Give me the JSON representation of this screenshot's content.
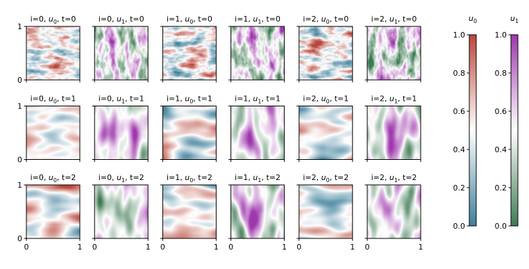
{
  "chart_data": {
    "type": "heatmap-grid",
    "xlim": [
      0,
      1
    ],
    "ylim": [
      0,
      1
    ],
    "xticks": [
      0,
      1
    ],
    "yticks": [
      0,
      1
    ],
    "panels": [
      {
        "title": [
          "i=0, ",
          "u",
          "0",
          ", t=0"
        ]
      },
      {
        "title": [
          "i=0, ",
          "u",
          "1",
          ", t=0"
        ]
      },
      {
        "title": [
          "i=1, ",
          "u",
          "0",
          ", t=0"
        ]
      },
      {
        "title": [
          "i=1, ",
          "u",
          "1",
          ", t=0"
        ]
      },
      {
        "title": [
          "i=2, ",
          "u",
          "0",
          ", t=0"
        ]
      },
      {
        "title": [
          "i=2, ",
          "u",
          "1",
          ", t=0"
        ]
      },
      {
        "title": [
          "i=0, ",
          "u",
          "0",
          ", t=1"
        ]
      },
      {
        "title": [
          "i=0, ",
          "u",
          "1",
          ", t=1"
        ]
      },
      {
        "title": [
          "i=1, ",
          "u",
          "0",
          ", t=1"
        ]
      },
      {
        "title": [
          "i=1, ",
          "u",
          "1",
          ", t=1"
        ]
      },
      {
        "title": [
          "i=2, ",
          "u",
          "0",
          ", t=1"
        ]
      },
      {
        "title": [
          "i=2, ",
          "u",
          "1",
          ", t=1"
        ]
      },
      {
        "title": [
          "i=0, ",
          "u",
          "0",
          ", t=2"
        ]
      },
      {
        "title": [
          "i=0, ",
          "u",
          "1",
          ", t=2"
        ]
      },
      {
        "title": [
          "i=1, ",
          "u",
          "0",
          ", t=2"
        ]
      },
      {
        "title": [
          "i=1, ",
          "u",
          "1",
          ", t=2"
        ]
      },
      {
        "title": [
          "i=2, ",
          "u",
          "0",
          ", t=2"
        ]
      },
      {
        "title": [
          "i=2, ",
          "u",
          "1",
          ", t=2"
        ]
      }
    ],
    "colorbars": [
      {
        "label": [
          "u",
          "0"
        ],
        "colors": [
          "#3f7f9b",
          "#ffffff",
          "#b9473b"
        ],
        "lim": [
          0,
          1
        ],
        "ticks": [
          {
            "value": 0,
            "label": "0.0"
          },
          {
            "value": 0.2,
            "label": "0.2"
          },
          {
            "value": 0.4,
            "label": "0.4"
          },
          {
            "value": 0.6,
            "label": "0.6"
          },
          {
            "value": 0.8,
            "label": "0.8"
          },
          {
            "value": 1,
            "label": "1.0"
          }
        ]
      },
      {
        "label": [
          "u",
          "1"
        ],
        "colors": [
          "#3d7a52",
          "#ffffff",
          "#9e37ad"
        ],
        "lim": [
          0,
          1
        ],
        "ticks": [
          {
            "value": 0,
            "label": "0.0"
          },
          {
            "value": 0.2,
            "label": "0.2"
          },
          {
            "value": 0.4,
            "label": "0.4"
          },
          {
            "value": 0.6,
            "label": "0.6"
          },
          {
            "value": 0.8,
            "label": "0.8"
          },
          {
            "value": 1,
            "label": "1.0"
          }
        ]
      }
    ]
  }
}
